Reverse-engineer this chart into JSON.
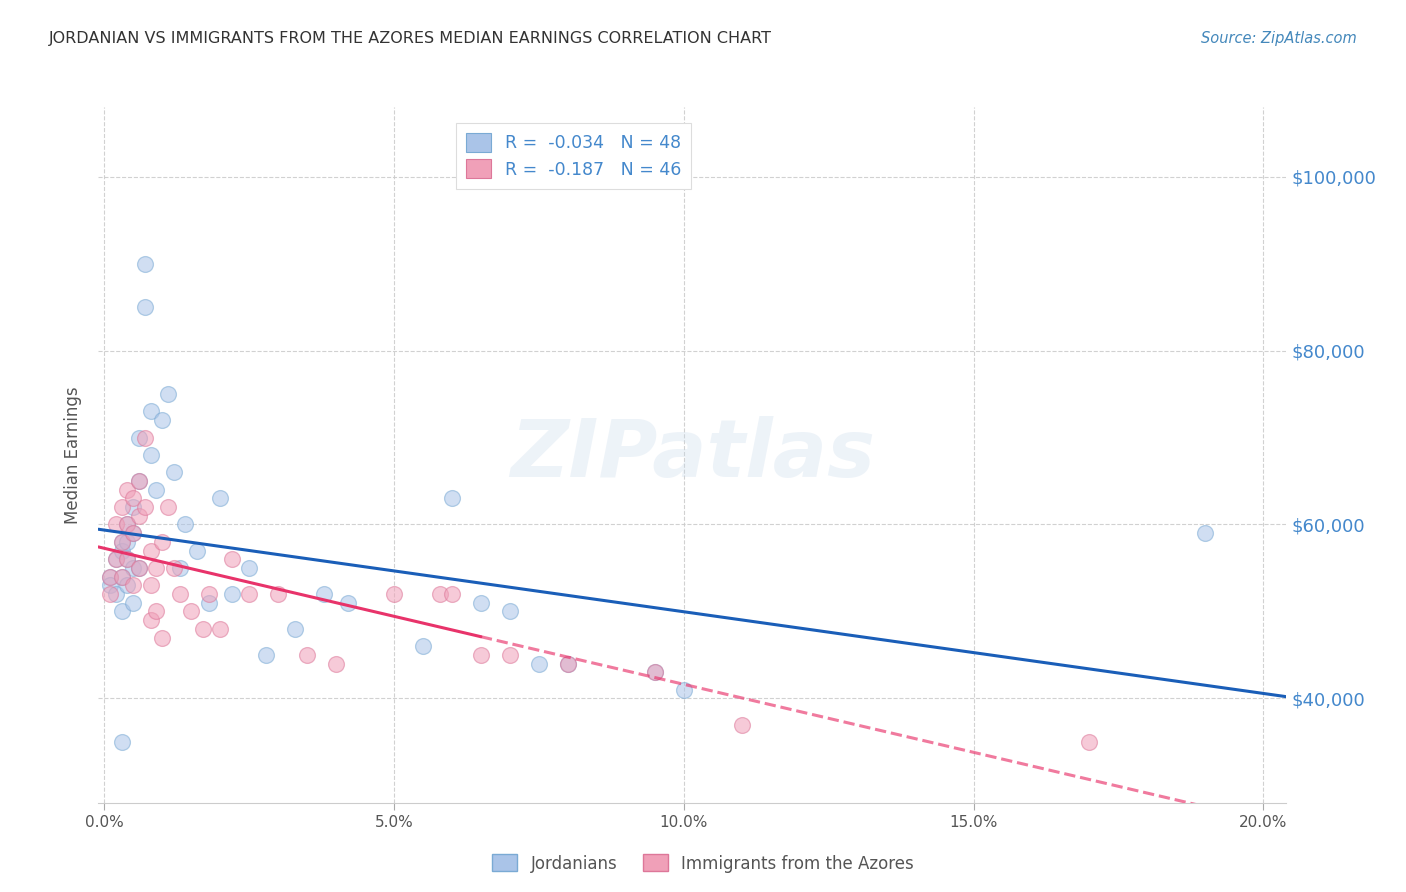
{
  "title": "JORDANIAN VS IMMIGRANTS FROM THE AZORES MEDIAN EARNINGS CORRELATION CHART",
  "source": "Source: ZipAtlas.com",
  "ylabel": "Median Earnings",
  "watermark": "ZIPatlas",
  "background_color": "#ffffff",
  "plot_bg_color": "#ffffff",
  "grid_color": "#cccccc",
  "title_color": "#333333",
  "source_color": "#4488bb",
  "axis_label_color": "#555555",
  "right_axis_color": "#4488cc",
  "jordanian_color": "#aac4e8",
  "jordanian_edge": "#7aaad4",
  "azores_color": "#f0a0b8",
  "azores_edge": "#dd7799",
  "blue_line_color": "#1a5eb8",
  "pink_line_color": "#e8336a",
  "right_ytick_labels": [
    "$40,000",
    "$60,000",
    "$80,000",
    "$100,000"
  ],
  "right_ytick_values": [
    40000,
    60000,
    80000,
    100000
  ],
  "ylim": [
    28000,
    108000
  ],
  "xlim": [
    -0.001,
    0.204
  ],
  "xtick_labels": [
    "0.0%",
    "5.0%",
    "10.0%",
    "15.0%",
    "20.0%"
  ],
  "xtick_values": [
    0.0,
    0.05,
    0.1,
    0.15,
    0.2
  ],
  "jordanian_x": [
    0.001,
    0.001,
    0.002,
    0.002,
    0.003,
    0.003,
    0.003,
    0.003,
    0.004,
    0.004,
    0.004,
    0.004,
    0.005,
    0.005,
    0.005,
    0.005,
    0.006,
    0.006,
    0.006,
    0.007,
    0.007,
    0.008,
    0.008,
    0.009,
    0.01,
    0.011,
    0.012,
    0.013,
    0.014,
    0.016,
    0.018,
    0.02,
    0.022,
    0.025,
    0.028,
    0.033,
    0.038,
    0.042,
    0.055,
    0.06,
    0.065,
    0.07,
    0.075,
    0.08,
    0.095,
    0.1,
    0.19,
    0.003
  ],
  "jordanian_y": [
    54000,
    53000,
    56000,
    52000,
    58000,
    54000,
    57000,
    50000,
    60000,
    56000,
    53000,
    58000,
    62000,
    59000,
    55000,
    51000,
    70000,
    65000,
    55000,
    85000,
    90000,
    73000,
    68000,
    64000,
    72000,
    75000,
    66000,
    55000,
    60000,
    57000,
    51000,
    63000,
    52000,
    55000,
    45000,
    48000,
    52000,
    51000,
    46000,
    63000,
    51000,
    50000,
    44000,
    44000,
    43000,
    41000,
    59000,
    35000
  ],
  "azores_x": [
    0.001,
    0.001,
    0.002,
    0.002,
    0.003,
    0.003,
    0.003,
    0.004,
    0.004,
    0.004,
    0.005,
    0.005,
    0.005,
    0.006,
    0.006,
    0.006,
    0.007,
    0.007,
    0.008,
    0.008,
    0.008,
    0.009,
    0.009,
    0.01,
    0.01,
    0.011,
    0.012,
    0.013,
    0.015,
    0.017,
    0.018,
    0.02,
    0.022,
    0.025,
    0.03,
    0.035,
    0.04,
    0.05,
    0.058,
    0.06,
    0.065,
    0.07,
    0.08,
    0.095,
    0.11,
    0.17
  ],
  "azores_y": [
    54000,
    52000,
    60000,
    56000,
    62000,
    58000,
    54000,
    64000,
    60000,
    56000,
    63000,
    59000,
    53000,
    65000,
    61000,
    55000,
    70000,
    62000,
    57000,
    53000,
    49000,
    55000,
    50000,
    58000,
    47000,
    62000,
    55000,
    52000,
    50000,
    48000,
    52000,
    48000,
    56000,
    52000,
    52000,
    45000,
    44000,
    52000,
    52000,
    52000,
    45000,
    45000,
    44000,
    43000,
    37000,
    35000
  ],
  "marker_size": 130,
  "marker_alpha": 0.55,
  "line_width": 2.2,
  "pink_split": 0.065
}
